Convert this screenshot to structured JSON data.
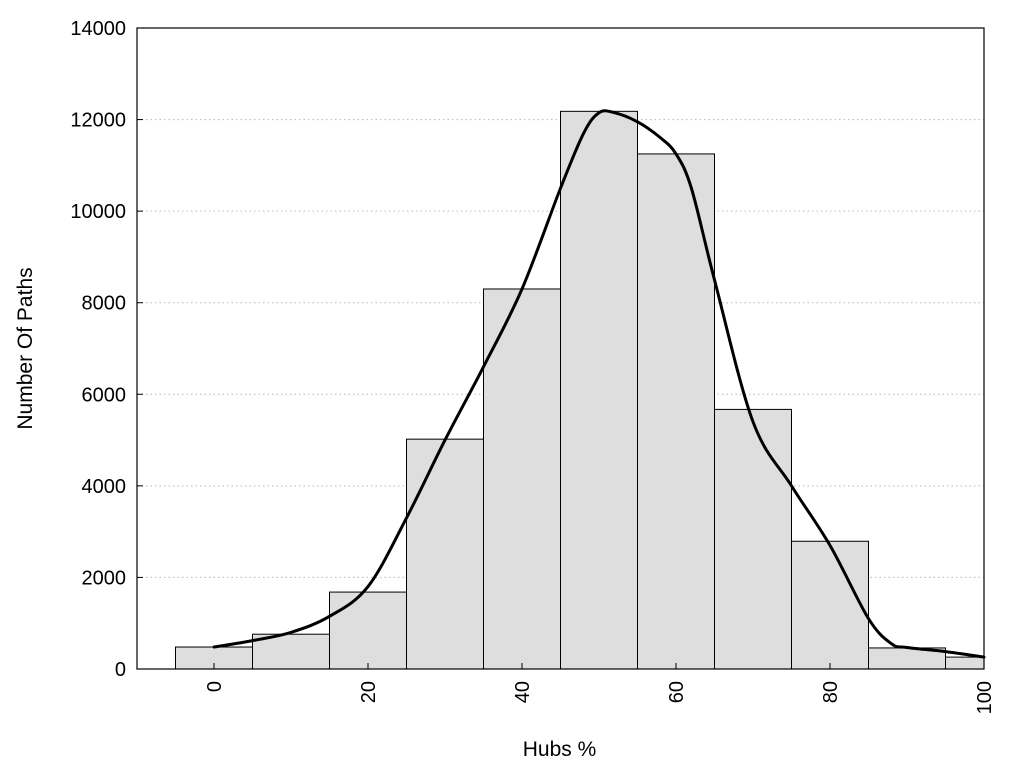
{
  "chart_data": {
    "type": "bar",
    "subtype": "histogram with smoothed density line",
    "xlabel": "Hubs %",
    "ylabel": "Number Of Paths",
    "xlim": [
      -10,
      100
    ],
    "ylim": [
      0,
      14000
    ],
    "bin_width": 10,
    "x_ticks": [
      0,
      20,
      40,
      60,
      80,
      100
    ],
    "y_ticks": [
      0,
      2000,
      4000,
      6000,
      8000,
      10000,
      12000,
      14000
    ],
    "grid": "horizontal dotted",
    "bins": [
      {
        "center": 0,
        "value": 480
      },
      {
        "center": 10,
        "value": 760
      },
      {
        "center": 20,
        "value": 1680
      },
      {
        "center": 30,
        "value": 5020
      },
      {
        "center": 40,
        "value": 8300
      },
      {
        "center": 50,
        "value": 12180
      },
      {
        "center": 60,
        "value": 11250
      },
      {
        "center": 70,
        "value": 5670
      },
      {
        "center": 80,
        "value": 2790
      },
      {
        "center": 90,
        "value": 460
      },
      {
        "center": 100,
        "value": 260
      }
    ],
    "curve": {
      "x": [
        0,
        5,
        10,
        15,
        20,
        25,
        30,
        35,
        40,
        45,
        48,
        50,
        52,
        55,
        58,
        60,
        62,
        65,
        70,
        75,
        80,
        85,
        88,
        90,
        95,
        100
      ],
      "y": [
        480,
        620,
        800,
        1150,
        1800,
        3300,
        5000,
        6600,
        8300,
        10500,
        11700,
        12150,
        12150,
        11950,
        11600,
        11250,
        10500,
        8500,
        5400,
        4000,
        2700,
        1100,
        550,
        470,
        380,
        260
      ]
    }
  },
  "colors": {
    "bar_fill": "#dedede",
    "bar_stroke": "#000000",
    "curve": "#000000",
    "grid": "#b8b8b8"
  }
}
